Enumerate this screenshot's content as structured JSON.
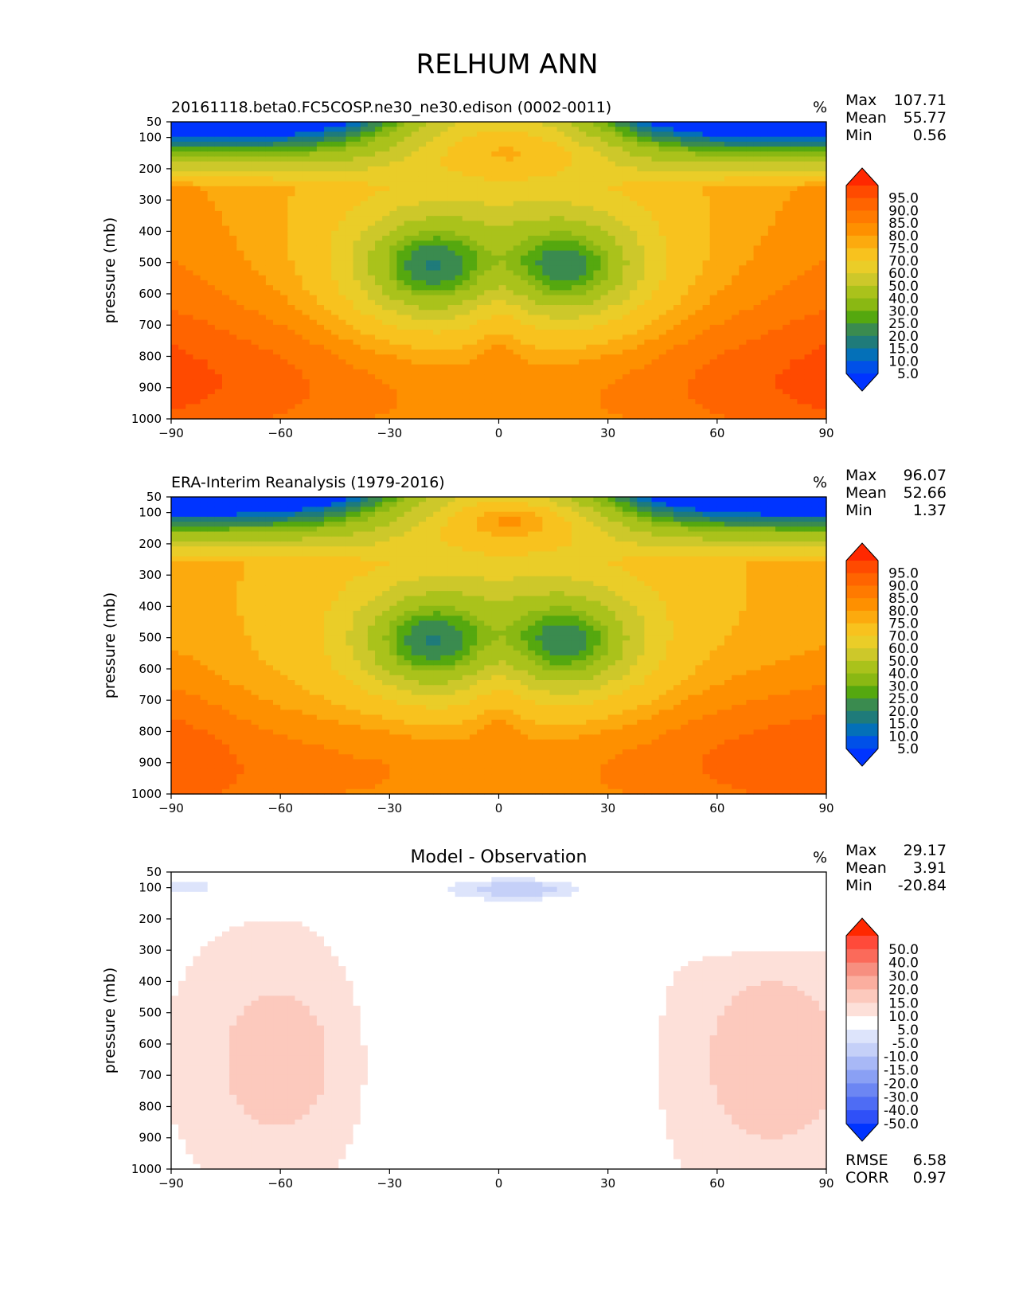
{
  "figure": {
    "title": "RELHUM ANN"
  },
  "chart_data": [
    {
      "type": "heatmap",
      "title": "20161118.beta0.FC5COSP.ne30_ne30.edison (0002-0011)",
      "units": "%",
      "ylabel": "pressure (mb)",
      "xlabel": "",
      "xlim": [
        -90,
        90
      ],
      "ylim": [
        1000,
        50
      ],
      "x_ticks": [
        -90,
        -60,
        -30,
        0,
        30,
        60,
        90
      ],
      "x_tick_labels": [
        "−90",
        "−60",
        "−30",
        "0",
        "30",
        "60",
        "90"
      ],
      "y_ticks": [
        50,
        100,
        200,
        300,
        400,
        500,
        600,
        700,
        800,
        900,
        1000
      ],
      "stats": [
        {
          "label": "Max",
          "value": "107.71"
        },
        {
          "label": "Mean",
          "value": "55.77"
        },
        {
          "label": "Min",
          "value": "0.56"
        }
      ],
      "colorbar": {
        "labels": [
          "95.0",
          "90.0",
          "85.0",
          "80.0",
          "75.0",
          "70.0",
          "60.0",
          "50.0",
          "40.0",
          "30.0",
          "25.0",
          "20.0",
          "15.0",
          "10.0",
          "5.0"
        ],
        "colors": [
          "#ff2800",
          "#ff4a00",
          "#ff6400",
          "#ff7a00",
          "#fe9000",
          "#fcaa0e",
          "#f8c21e",
          "#eacd28",
          "#cdc82a",
          "#aac21b",
          "#8ab813",
          "#55a80f",
          "#3a8b4f",
          "#1f7b7a",
          "#0470b8",
          "#0050e8",
          "#0034ff"
        ]
      },
      "field": {
        "model": "model",
        "note_grid": "lat x pressure relative humidity pattern"
      }
    },
    {
      "type": "heatmap",
      "title": "ERA-Interim Reanalysis (1979-2016)",
      "units": "%",
      "ylabel": "pressure (mb)",
      "xlabel": "",
      "xlim": [
        -90,
        90
      ],
      "ylim": [
        1000,
        50
      ],
      "x_ticks": [
        -90,
        -60,
        -30,
        0,
        30,
        60,
        90
      ],
      "x_tick_labels": [
        "−90",
        "−60",
        "−30",
        "0",
        "30",
        "60",
        "90"
      ],
      "y_ticks": [
        50,
        100,
        200,
        300,
        400,
        500,
        600,
        700,
        800,
        900,
        1000
      ],
      "stats": [
        {
          "label": "Max",
          "value": "96.07"
        },
        {
          "label": "Mean",
          "value": "52.66"
        },
        {
          "label": "Min",
          "value": "1.37"
        }
      ],
      "colorbar": {
        "labels": [
          "95.0",
          "90.0",
          "85.0",
          "80.0",
          "75.0",
          "70.0",
          "60.0",
          "50.0",
          "40.0",
          "30.0",
          "25.0",
          "20.0",
          "15.0",
          "10.0",
          "5.0"
        ],
        "colors": [
          "#ff2800",
          "#ff4a00",
          "#ff6400",
          "#ff7a00",
          "#fe9000",
          "#fcaa0e",
          "#f8c21e",
          "#eacd28",
          "#cdc82a",
          "#aac21b",
          "#8ab813",
          "#55a80f",
          "#3a8b4f",
          "#1f7b7a",
          "#0470b8",
          "#0050e8",
          "#0034ff"
        ]
      },
      "field": {
        "model": "obs"
      }
    },
    {
      "type": "heatmap",
      "title": "Model - Observation",
      "units": "%",
      "ylabel": "pressure (mb)",
      "xlabel": "",
      "xlim": [
        -90,
        90
      ],
      "ylim": [
        1000,
        50
      ],
      "x_ticks": [
        -90,
        -60,
        -30,
        0,
        30,
        60,
        90
      ],
      "x_tick_labels": [
        "−90",
        "−60",
        "−30",
        "0",
        "30",
        "60",
        "90"
      ],
      "y_ticks": [
        50,
        100,
        200,
        300,
        400,
        500,
        600,
        700,
        800,
        900,
        1000
      ],
      "stats": [
        {
          "label": "Max",
          "value": "29.17"
        },
        {
          "label": "Mean",
          "value": "3.91"
        },
        {
          "label": "Min",
          "value": "-20.84"
        }
      ],
      "extra_stats": [
        {
          "label": "RMSE",
          "value": "6.58"
        },
        {
          "label": "CORR",
          "value": "0.97"
        }
      ],
      "colorbar": {
        "labels": [
          "50.0",
          "40.0",
          "30.0",
          "20.0",
          "15.0",
          "10.0",
          "5.0",
          "-5.0",
          "-10.0",
          "-15.0",
          "-20.0",
          "-30.0",
          "-40.0",
          "-50.0"
        ],
        "colors": [
          "#ff2800",
          "#ff4a3a",
          "#fb6a5a",
          "#f78f80",
          "#fbae9f",
          "#fcc9bd",
          "#fde0d9",
          "#ffffff",
          "#dde4fb",
          "#c5d0f8",
          "#a8b8f6",
          "#8aa0f4",
          "#6c86f3",
          "#4e6cf4",
          "#2f50f8",
          "#0034ff"
        ]
      },
      "field": {
        "model": "diff"
      }
    }
  ]
}
